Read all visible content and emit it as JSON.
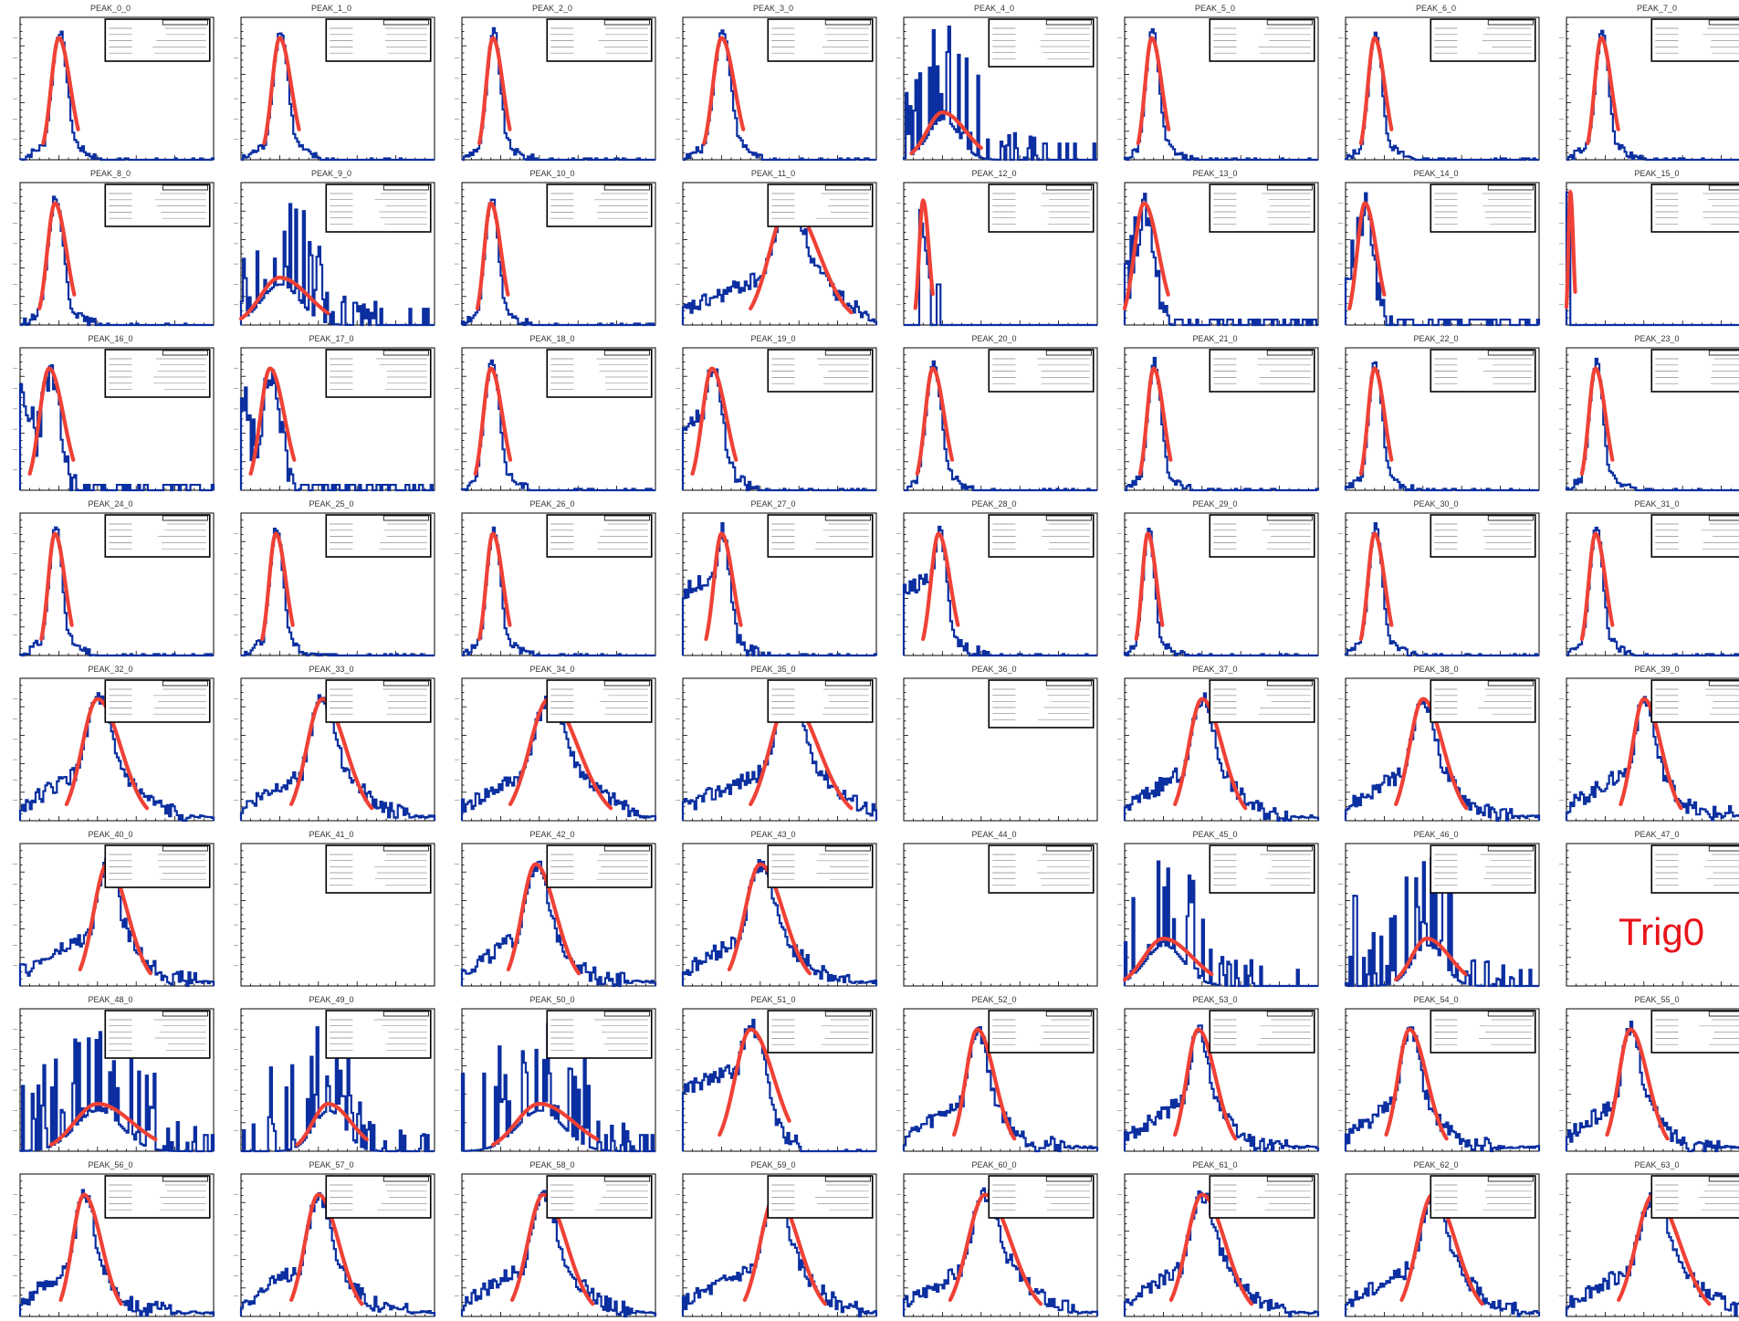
{
  "colors": {
    "histogram": "#0b2fa0",
    "fit": "#ef4136",
    "frame": "#000000",
    "annotation": "#e8141b"
  },
  "annotation": "Trig0",
  "chart_data": {
    "type": "histogram-grid",
    "rows": 8,
    "cols": 8,
    "xlim": [
      0,
      2500
    ],
    "panels": [
      {
        "title": "PEAK_0_0",
        "shape": "sharp",
        "peak": 0.2,
        "width": 0.04,
        "fit": true,
        "stats": "short"
      },
      {
        "title": "PEAK_1_0",
        "shape": "sharp",
        "peak": 0.2,
        "width": 0.04,
        "fit": true,
        "stats": "short"
      },
      {
        "title": "PEAK_2_0",
        "shape": "sharp",
        "peak": 0.16,
        "width": 0.035,
        "fit": true,
        "stats": "short"
      },
      {
        "title": "PEAK_3_0",
        "shape": "sharp",
        "peak": 0.2,
        "width": 0.045,
        "fit": true,
        "stats": "short"
      },
      {
        "title": "PEAK_4_0",
        "shape": "sparse",
        "peak": 0.2,
        "width": 0.08,
        "fit": true,
        "stats": "long"
      },
      {
        "title": "PEAK_5_0",
        "shape": "sharp",
        "peak": 0.14,
        "width": 0.035,
        "fit": true,
        "stats": "short"
      },
      {
        "title": "PEAK_6_0",
        "shape": "sharp",
        "peak": 0.15,
        "width": 0.035,
        "fit": true,
        "stats": "short"
      },
      {
        "title": "PEAK_7_0",
        "shape": "sharp",
        "peak": 0.18,
        "width": 0.035,
        "fit": true,
        "stats": "short"
      },
      {
        "title": "PEAK_8_0",
        "shape": "sharp",
        "peak": 0.18,
        "width": 0.04,
        "fit": true,
        "stats": "short"
      },
      {
        "title": "PEAK_9_0",
        "shape": "sparse",
        "peak": 0.2,
        "width": 0.1,
        "fit": true,
        "stats": "long"
      },
      {
        "title": "PEAK_10_0",
        "shape": "sharp",
        "peak": 0.15,
        "width": 0.035,
        "fit": true,
        "stats": "short"
      },
      {
        "title": "PEAK_11_0",
        "shape": "broad",
        "peak": 0.55,
        "width": 0.1,
        "fit": true,
        "stats": "short"
      },
      {
        "title": "PEAK_12_0",
        "shape": "spike",
        "peak": 0.1,
        "width": 0.02,
        "fit": true,
        "stats": "long"
      },
      {
        "title": "PEAK_13_0",
        "shape": "noisy",
        "peak": 0.1,
        "width": 0.05,
        "fit": true,
        "stats": "long"
      },
      {
        "title": "PEAK_14_0",
        "shape": "noisy",
        "peak": 0.1,
        "width": 0.04,
        "fit": true,
        "stats": "long"
      },
      {
        "title": "PEAK_15_0",
        "shape": "edge",
        "peak": 0.02,
        "width": 0.01,
        "fit": true,
        "stats": "long"
      },
      {
        "title": "PEAK_16_0",
        "shape": "noisy",
        "peak": 0.15,
        "width": 0.05,
        "fit": true,
        "stats": "long"
      },
      {
        "title": "PEAK_17_0",
        "shape": "noisy",
        "peak": 0.15,
        "width": 0.05,
        "fit": true,
        "stats": "long"
      },
      {
        "title": "PEAK_18_0",
        "shape": "sharp",
        "peak": 0.15,
        "width": 0.04,
        "fit": true,
        "stats": "long"
      },
      {
        "title": "PEAK_19_0",
        "shape": "shoulder",
        "peak": 0.15,
        "width": 0.05,
        "fit": true,
        "stats": "short"
      },
      {
        "title": "PEAK_20_0",
        "shape": "sharp",
        "peak": 0.15,
        "width": 0.04,
        "fit": true,
        "stats": "short"
      },
      {
        "title": "PEAK_21_0",
        "shape": "sharp",
        "peak": 0.15,
        "width": 0.035,
        "fit": true,
        "stats": "short"
      },
      {
        "title": "PEAK_22_0",
        "shape": "sharp",
        "peak": 0.15,
        "width": 0.035,
        "fit": true,
        "stats": "short"
      },
      {
        "title": "PEAK_23_0",
        "shape": "sharp",
        "peak": 0.15,
        "width": 0.035,
        "fit": true,
        "stats": "short"
      },
      {
        "title": "PEAK_24_0",
        "shape": "sharp",
        "peak": 0.18,
        "width": 0.035,
        "fit": true,
        "stats": "short"
      },
      {
        "title": "PEAK_25_0",
        "shape": "sharp",
        "peak": 0.18,
        "width": 0.035,
        "fit": true,
        "stats": "short"
      },
      {
        "title": "PEAK_26_0",
        "shape": "sharp",
        "peak": 0.16,
        "width": 0.035,
        "fit": true,
        "stats": "short"
      },
      {
        "title": "PEAK_27_0",
        "shape": "shoulder",
        "peak": 0.2,
        "width": 0.04,
        "fit": true,
        "stats": "short"
      },
      {
        "title": "PEAK_28_0",
        "shape": "shoulder",
        "peak": 0.18,
        "width": 0.04,
        "fit": true,
        "stats": "short"
      },
      {
        "title": "PEAK_29_0",
        "shape": "sharp",
        "peak": 0.12,
        "width": 0.03,
        "fit": true,
        "stats": "short"
      },
      {
        "title": "PEAK_30_0",
        "shape": "sharp",
        "peak": 0.15,
        "width": 0.035,
        "fit": true,
        "stats": "short"
      },
      {
        "title": "PEAK_31_0",
        "shape": "sharp",
        "peak": 0.15,
        "width": 0.035,
        "fit": true,
        "stats": "short"
      },
      {
        "title": "PEAK_32_0",
        "shape": "broad",
        "peak": 0.4,
        "width": 0.08,
        "fit": true,
        "stats": "short"
      },
      {
        "title": "PEAK_33_0",
        "shape": "broad",
        "peak": 0.42,
        "width": 0.08,
        "fit": true,
        "stats": "short"
      },
      {
        "title": "PEAK_34_0",
        "shape": "broad",
        "peak": 0.45,
        "width": 0.1,
        "fit": true,
        "stats": "short"
      },
      {
        "title": "PEAK_35_0",
        "shape": "broad",
        "peak": 0.55,
        "width": 0.1,
        "fit": true,
        "stats": "short"
      },
      {
        "title": "PEAK_36_0",
        "shape": "empty",
        "peak": 0,
        "width": 0,
        "fit": false,
        "stats": "long"
      },
      {
        "title": "PEAK_37_0",
        "shape": "broad",
        "peak": 0.4,
        "width": 0.07,
        "fit": true,
        "stats": "short"
      },
      {
        "title": "PEAK_38_0",
        "shape": "broad",
        "peak": 0.4,
        "width": 0.07,
        "fit": true,
        "stats": "short"
      },
      {
        "title": "PEAK_39_0",
        "shape": "broad",
        "peak": 0.4,
        "width": 0.06,
        "fit": true,
        "stats": "short"
      },
      {
        "title": "PEAK_40_0",
        "shape": "broad",
        "peak": 0.45,
        "width": 0.07,
        "fit": true,
        "stats": "short"
      },
      {
        "title": "PEAK_41_0",
        "shape": "empty",
        "peak": 0,
        "width": 0,
        "fit": false,
        "stats": "long"
      },
      {
        "title": "PEAK_42_0",
        "shape": "broad",
        "peak": 0.38,
        "width": 0.07,
        "fit": true,
        "stats": "short"
      },
      {
        "title": "PEAK_43_0",
        "shape": "broad",
        "peak": 0.4,
        "width": 0.08,
        "fit": true,
        "stats": "short"
      },
      {
        "title": "PEAK_44_0",
        "shape": "empty",
        "peak": 0,
        "width": 0,
        "fit": false,
        "stats": "long"
      },
      {
        "title": "PEAK_45_0",
        "shape": "sparse",
        "peak": 0.2,
        "width": 0.1,
        "fit": true,
        "stats": "long"
      },
      {
        "title": "PEAK_46_0",
        "shape": "sparse",
        "peak": 0.42,
        "width": 0.08,
        "fit": true,
        "stats": "long"
      },
      {
        "title": "PEAK_47_0",
        "shape": "empty",
        "peak": 0,
        "width": 0,
        "fit": false,
        "stats": "long"
      },
      {
        "title": "PEAK_48_0",
        "shape": "sparse",
        "peak": 0.4,
        "width": 0.12,
        "fit": true,
        "stats": "long"
      },
      {
        "title": "PEAK_49_0",
        "shape": "sparse",
        "peak": 0.45,
        "width": 0.08,
        "fit": true,
        "stats": "long"
      },
      {
        "title": "PEAK_50_0",
        "shape": "sparse",
        "peak": 0.4,
        "width": 0.12,
        "fit": true,
        "stats": "long"
      },
      {
        "title": "PEAK_51_0",
        "shape": "shoulder",
        "peak": 0.35,
        "width": 0.08,
        "fit": true,
        "stats": "short"
      },
      {
        "title": "PEAK_52_0",
        "shape": "broad",
        "peak": 0.38,
        "width": 0.06,
        "fit": true,
        "stats": "short"
      },
      {
        "title": "PEAK_53_0",
        "shape": "broad",
        "peak": 0.38,
        "width": 0.06,
        "fit": true,
        "stats": "short"
      },
      {
        "title": "PEAK_54_0",
        "shape": "broad",
        "peak": 0.33,
        "width": 0.06,
        "fit": true,
        "stats": "short"
      },
      {
        "title": "PEAK_55_0",
        "shape": "broad",
        "peak": 0.33,
        "width": 0.06,
        "fit": true,
        "stats": "short"
      },
      {
        "title": "PEAK_56_0",
        "shape": "broad",
        "peak": 0.33,
        "width": 0.06,
        "fit": true,
        "stats": "short"
      },
      {
        "title": "PEAK_57_0",
        "shape": "broad",
        "peak": 0.4,
        "width": 0.07,
        "fit": true,
        "stats": "short"
      },
      {
        "title": "PEAK_58_0",
        "shape": "broad",
        "peak": 0.42,
        "width": 0.08,
        "fit": true,
        "stats": "short"
      },
      {
        "title": "PEAK_59_0",
        "shape": "broad",
        "peak": 0.48,
        "width": 0.08,
        "fit": true,
        "stats": "short"
      },
      {
        "title": "PEAK_60_0",
        "shape": "broad",
        "peak": 0.42,
        "width": 0.09,
        "fit": true,
        "stats": "short"
      },
      {
        "title": "PEAK_61_0",
        "shape": "broad",
        "peak": 0.4,
        "width": 0.08,
        "fit": true,
        "stats": "short"
      },
      {
        "title": "PEAK_62_0",
        "shape": "broad",
        "peak": 0.45,
        "width": 0.08,
        "fit": true,
        "stats": "short"
      },
      {
        "title": "PEAK_63_0",
        "shape": "broad",
        "peak": 0.45,
        "width": 0.09,
        "fit": true,
        "stats": "short"
      }
    ]
  }
}
